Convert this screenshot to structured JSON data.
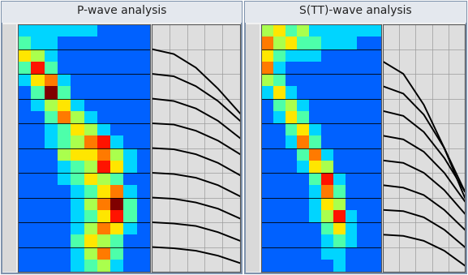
{
  "chart_data": [
    {
      "type": "heatmap",
      "title": "P-wave analysis",
      "tick_labels": false,
      "grid": true,
      "xlim": [
        0,
        10
      ],
      "ylim": [
        20,
        0
      ],
      "yticks": [
        2,
        4,
        6,
        8,
        10,
        12,
        14,
        16,
        18
      ],
      "color_range": [
        0,
        9
      ],
      "cells": [
        [
          3,
          3,
          3,
          3,
          3,
          3,
          2,
          2,
          2,
          2
        ],
        [
          4,
          3,
          3,
          2,
          2,
          2,
          2,
          2,
          2,
          2
        ],
        [
          6,
          5,
          3,
          2,
          2,
          2,
          2,
          2,
          2,
          2
        ],
        [
          4,
          8,
          4,
          2,
          2,
          2,
          2,
          2,
          2,
          2
        ],
        [
          3,
          6,
          7,
          3,
          2,
          2,
          2,
          2,
          2,
          2
        ],
        [
          2,
          4,
          9,
          4,
          2,
          2,
          2,
          2,
          2,
          2
        ],
        [
          2,
          3,
          5,
          6,
          3,
          2,
          2,
          2,
          2,
          2
        ],
        [
          2,
          2,
          4,
          7,
          5,
          3,
          2,
          2,
          2,
          2
        ],
        [
          2,
          2,
          3,
          4,
          6,
          5,
          3,
          2,
          2,
          2
        ],
        [
          2,
          2,
          3,
          4,
          5,
          7,
          8,
          3,
          2,
          2
        ],
        [
          2,
          2,
          2,
          5,
          6,
          6,
          7,
          5,
          3,
          2
        ],
        [
          2,
          2,
          2,
          3,
          4,
          5,
          8,
          6,
          3,
          2
        ],
        [
          2,
          2,
          2,
          3,
          4,
          6,
          5,
          4,
          2,
          2
        ],
        [
          2,
          2,
          2,
          2,
          3,
          4,
          6,
          7,
          3,
          2
        ],
        [
          2,
          2,
          2,
          2,
          3,
          5,
          7,
          9,
          4,
          2
        ],
        [
          2,
          2,
          2,
          2,
          3,
          4,
          6,
          8,
          4,
          2
        ],
        [
          2,
          2,
          2,
          2,
          3,
          5,
          7,
          6,
          3,
          2
        ],
        [
          2,
          2,
          2,
          2,
          4,
          6,
          5,
          4,
          2,
          2
        ],
        [
          2,
          2,
          2,
          2,
          3,
          5,
          7,
          4,
          2,
          2
        ],
        [
          2,
          2,
          2,
          2,
          3,
          4,
          5,
          3,
          2,
          2
        ]
      ],
      "gather": {
        "type": "line",
        "xlim": [
          0,
          10
        ],
        "ylim": [
          20,
          0
        ],
        "xticks": [
          2,
          4,
          6,
          8
        ],
        "yticks": [
          2,
          4,
          6,
          8,
          10,
          12,
          14,
          16,
          18
        ],
        "offsets": [
          0,
          2.5,
          5,
          7.5,
          10
        ],
        "events": [
          [
            2,
            2.4,
            3.5,
            5.2,
            7.2
          ],
          [
            4,
            4.2,
            5.0,
            6.2,
            7.8
          ],
          [
            6,
            6.2,
            6.8,
            7.8,
            9.2
          ],
          [
            8,
            8.1,
            8.6,
            9.4,
            10.5
          ],
          [
            10,
            10.1,
            10.5,
            11.2,
            12.2
          ],
          [
            12,
            12.1,
            12.4,
            13.0,
            13.9
          ],
          [
            14,
            14.1,
            14.4,
            14.9,
            15.7
          ],
          [
            16,
            16.1,
            16.3,
            16.8,
            17.5
          ],
          [
            18,
            18.1,
            18.3,
            18.7,
            19.3
          ]
        ]
      }
    },
    {
      "type": "heatmap",
      "title": "S(TT)-wave analysis",
      "tick_labels": false,
      "grid": true,
      "xlim": [
        0,
        10
      ],
      "ylim": [
        20,
        0
      ],
      "yticks": [
        2,
        4,
        6,
        8,
        10,
        12,
        14,
        16,
        18
      ],
      "color_range": [
        0,
        9
      ],
      "cells": [
        [
          5,
          6,
          4,
          5,
          3,
          3,
          3,
          3,
          3,
          3
        ],
        [
          7,
          5,
          6,
          4,
          4,
          3,
          3,
          3,
          2,
          2
        ],
        [
          6,
          4,
          3,
          3,
          3,
          2,
          2,
          2,
          2,
          2
        ],
        [
          7,
          3,
          2,
          2,
          2,
          2,
          2,
          2,
          2,
          2
        ],
        [
          5,
          4,
          2,
          2,
          2,
          2,
          2,
          2,
          2,
          2
        ],
        [
          3,
          6,
          3,
          2,
          2,
          2,
          2,
          2,
          2,
          2
        ],
        [
          2,
          4,
          5,
          3,
          2,
          2,
          2,
          2,
          2,
          2
        ],
        [
          2,
          3,
          6,
          4,
          2,
          2,
          2,
          2,
          2,
          2
        ],
        [
          2,
          2,
          4,
          6,
          3,
          2,
          2,
          2,
          2,
          2
        ],
        [
          2,
          2,
          3,
          7,
          4,
          2,
          2,
          2,
          2,
          2
        ],
        [
          2,
          2,
          2,
          4,
          7,
          3,
          2,
          2,
          2,
          2
        ],
        [
          2,
          2,
          2,
          3,
          6,
          5,
          2,
          2,
          2,
          2
        ],
        [
          2,
          2,
          2,
          2,
          4,
          8,
          3,
          2,
          2,
          2
        ],
        [
          2,
          2,
          2,
          2,
          3,
          7,
          4,
          2,
          2,
          2
        ],
        [
          2,
          2,
          2,
          2,
          3,
          6,
          5,
          2,
          2,
          2
        ],
        [
          2,
          2,
          2,
          2,
          3,
          5,
          8,
          3,
          2,
          2
        ],
        [
          2,
          2,
          2,
          2,
          2,
          4,
          6,
          3,
          2,
          2
        ],
        [
          2,
          2,
          2,
          2,
          2,
          3,
          4,
          3,
          2,
          2
        ],
        [
          2,
          2,
          2,
          2,
          2,
          3,
          3,
          2,
          2,
          2
        ],
        [
          2,
          2,
          2,
          2,
          2,
          2,
          3,
          2,
          2,
          2
        ]
      ],
      "gather": {
        "type": "line",
        "xlim": [
          0,
          10
        ],
        "ylim": [
          20,
          0
        ],
        "xticks": [
          2,
          4,
          6,
          8
        ],
        "yticks": [
          2,
          4,
          6,
          8,
          10,
          12,
          14,
          16,
          18
        ],
        "offsets": [
          0,
          2.5,
          5,
          7.5,
          10
        ],
        "events": [
          [
            3,
            4.0,
            6.5,
            10,
            14
          ],
          [
            5,
            5.6,
            7.3,
            10,
            13.5
          ],
          [
            7,
            7.4,
            8.7,
            10.8,
            13.5
          ],
          [
            9,
            9.3,
            10.3,
            12,
            14.3
          ],
          [
            11,
            11.2,
            12.0,
            13.4,
            15.3
          ],
          [
            13,
            13.2,
            13.8,
            15,
            16.6
          ],
          [
            15,
            15.1,
            15.6,
            16.6,
            18
          ],
          [
            17,
            17.1,
            17.5,
            18.3,
            19.5
          ]
        ]
      }
    }
  ]
}
